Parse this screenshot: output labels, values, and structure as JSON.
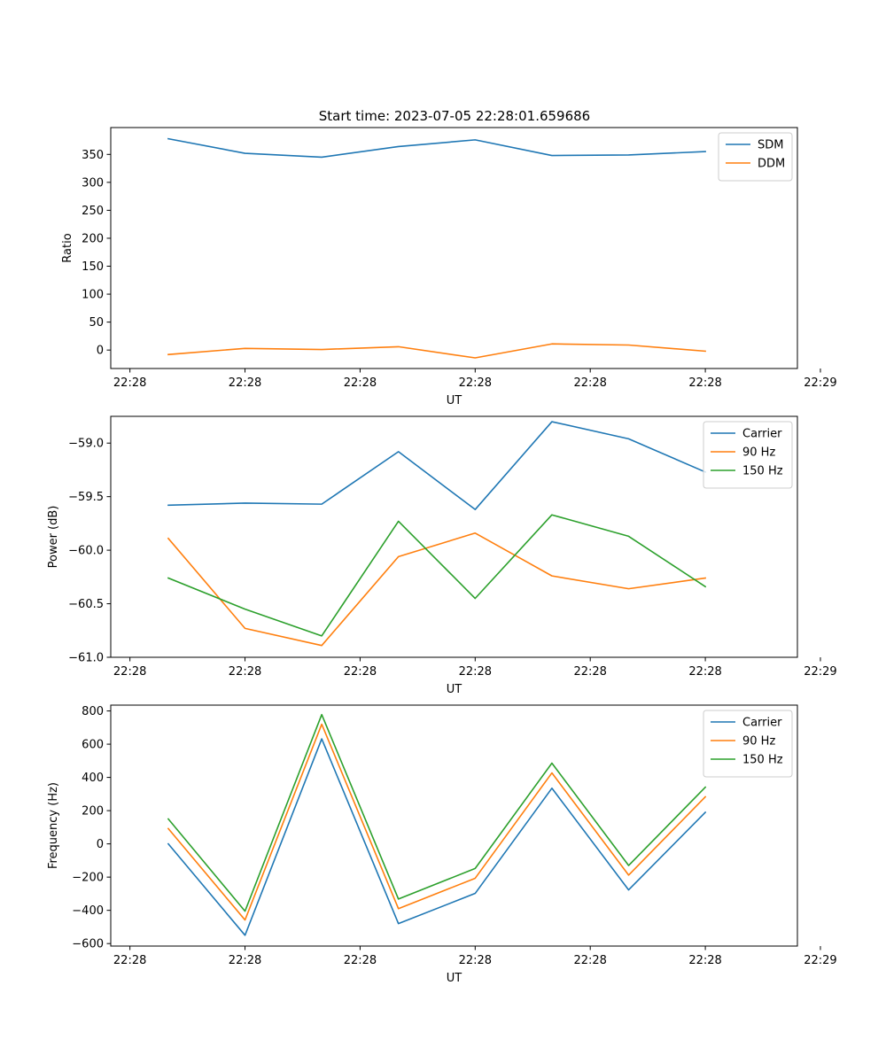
{
  "figure": {
    "title": "Start time: 2023-07-05 22:28:01.659686"
  },
  "colors": {
    "blue": "#1f77b4",
    "orange": "#ff7f0e",
    "green": "#2ca02c"
  },
  "chart_data": [
    {
      "type": "line",
      "title": "Start time: 2023-07-05 22:28:01.659686",
      "xlabel": "UT",
      "ylabel": "Ratio",
      "x": [
        1,
        2,
        3,
        4,
        5,
        6,
        7,
        8
      ],
      "xlim": [
        0.25,
        9.2
      ],
      "x_ticks": [
        0.5,
        2,
        3.5,
        5,
        6.5,
        8,
        9.5
      ],
      "x_tick_labels": [
        "22:28",
        "22:28",
        "22:28",
        "22:28",
        "22:28",
        "22:28",
        "22:29"
      ],
      "ylim": [
        -33,
        398
      ],
      "y_ticks": [
        0,
        50,
        100,
        150,
        200,
        250,
        300,
        350
      ],
      "y_tick_labels": [
        "0",
        "50",
        "100",
        "150",
        "200",
        "250",
        "300",
        "350"
      ],
      "legend_position": "top-right",
      "series": [
        {
          "name": "SDM",
          "color": "#1f77b4",
          "values": [
            378,
            352,
            345,
            364,
            376,
            348,
            349,
            355
          ]
        },
        {
          "name": "DDM",
          "color": "#ff7f0e",
          "values": [
            -8,
            3,
            1,
            6,
            -14,
            11,
            9,
            -2
          ]
        }
      ]
    },
    {
      "type": "line",
      "title": "",
      "xlabel": "UT",
      "ylabel": "Power (dB)",
      "x": [
        1,
        2,
        3,
        4,
        5,
        6,
        7,
        8
      ],
      "xlim": [
        0.25,
        9.2
      ],
      "x_ticks": [
        0.5,
        2,
        3.5,
        5,
        6.5,
        8,
        9.5
      ],
      "x_tick_labels": [
        "22:28",
        "22:28",
        "22:28",
        "22:28",
        "22:28",
        "22:28",
        "22:29"
      ],
      "ylim": [
        -61.0,
        -58.75
      ],
      "y_ticks": [
        -61.0,
        -60.5,
        -60.0,
        -59.5,
        -59.0
      ],
      "y_tick_labels": [
        "−61.0",
        "−60.5",
        "−60.0",
        "−59.5",
        "−59.0"
      ],
      "legend_position": "top-right",
      "series": [
        {
          "name": "Carrier",
          "color": "#1f77b4",
          "values": [
            -59.58,
            -59.56,
            -59.57,
            -59.08,
            -59.62,
            -58.8,
            -58.96,
            -59.27
          ]
        },
        {
          "name": "90 Hz",
          "color": "#ff7f0e",
          "values": [
            -59.89,
            -60.73,
            -60.89,
            -60.06,
            -59.84,
            -60.24,
            -60.36,
            -60.26
          ]
        },
        {
          "name": "150 Hz",
          "color": "#2ca02c",
          "values": [
            -60.26,
            -60.55,
            -60.8,
            -59.73,
            -60.45,
            -59.67,
            -59.87,
            -60.34
          ]
        }
      ]
    },
    {
      "type": "line",
      "title": "",
      "xlabel": "UT",
      "ylabel": "Frequency (Hz)",
      "x": [
        1,
        2,
        3,
        4,
        5,
        6,
        7,
        8
      ],
      "xlim": [
        0.25,
        9.2
      ],
      "x_ticks": [
        0.5,
        2,
        3.5,
        5,
        6.5,
        8,
        9.5
      ],
      "x_tick_labels": [
        "22:28",
        "22:28",
        "22:28",
        "22:28",
        "22:28",
        "22:28",
        "22:29"
      ],
      "ylim": [
        -615,
        835
      ],
      "y_ticks": [
        -600,
        -400,
        -200,
        0,
        200,
        400,
        600,
        800
      ],
      "y_tick_labels": [
        "−600",
        "−400",
        "−200",
        "0",
        "200",
        "400",
        "600",
        "800"
      ],
      "legend_position": "top-right",
      "series": [
        {
          "name": "Carrier",
          "color": "#1f77b4",
          "values": [
            0,
            -550,
            632,
            -480,
            -298,
            335,
            -277,
            190
          ]
        },
        {
          "name": "90 Hz",
          "color": "#ff7f0e",
          "values": [
            92,
            -458,
            720,
            -390,
            -207,
            427,
            -188,
            283
          ]
        },
        {
          "name": "150 Hz",
          "color": "#2ca02c",
          "values": [
            150,
            -405,
            778,
            -332,
            -148,
            486,
            -130,
            341
          ]
        }
      ]
    }
  ]
}
